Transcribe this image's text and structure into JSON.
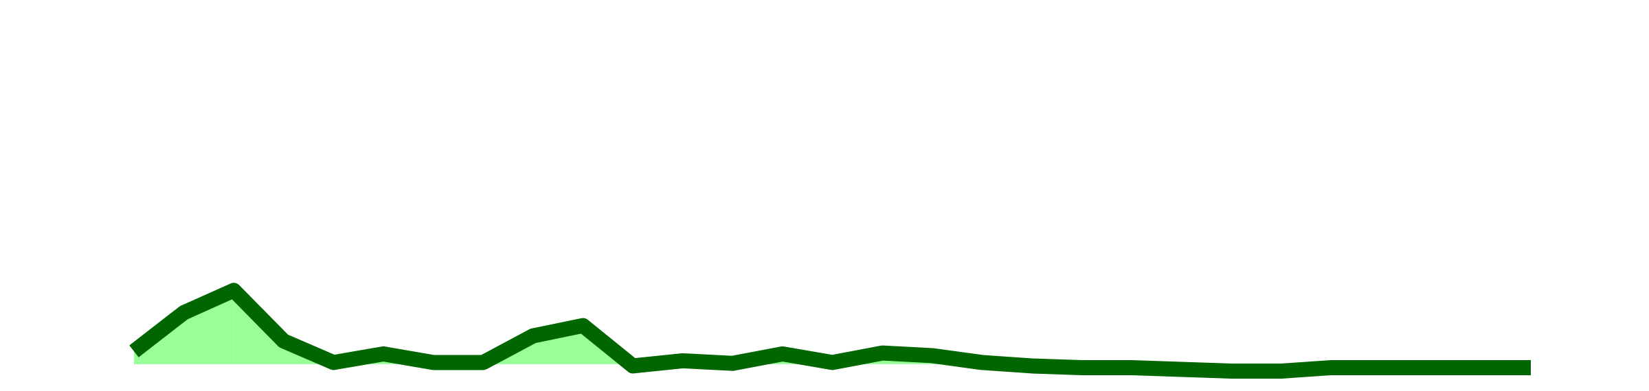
{
  "chart_data": {
    "type": "line",
    "title": "",
    "xlabel": "",
    "ylabel": "",
    "grid": false,
    "legend": "none",
    "x": [
      0,
      1,
      2,
      3,
      4,
      5,
      6,
      7,
      8,
      9,
      10,
      11,
      12,
      13,
      14,
      15,
      16,
      17,
      18,
      19,
      20,
      21,
      22,
      23,
      24,
      25,
      26,
      27,
      28
    ],
    "series": [
      {
        "values": [
          1.5,
          6.0,
          8.6,
          2.7,
          0.2,
          1.2,
          0.2,
          0.2,
          3.3,
          4.5,
          -0.2,
          0.4,
          0.1,
          1.2,
          0.2,
          1.3,
          1.0,
          0.2,
          -0.2,
          -0.4,
          -0.4,
          -0.6,
          -0.8,
          -0.8,
          -0.4,
          -0.4,
          -0.4,
          -0.4,
          -0.4
        ],
        "baseline": 0,
        "line_color": "#006600",
        "fill_color": "#99ff99"
      }
    ],
    "xlim": [
      0,
      28
    ],
    "ylim": [
      -2,
      40
    ]
  }
}
